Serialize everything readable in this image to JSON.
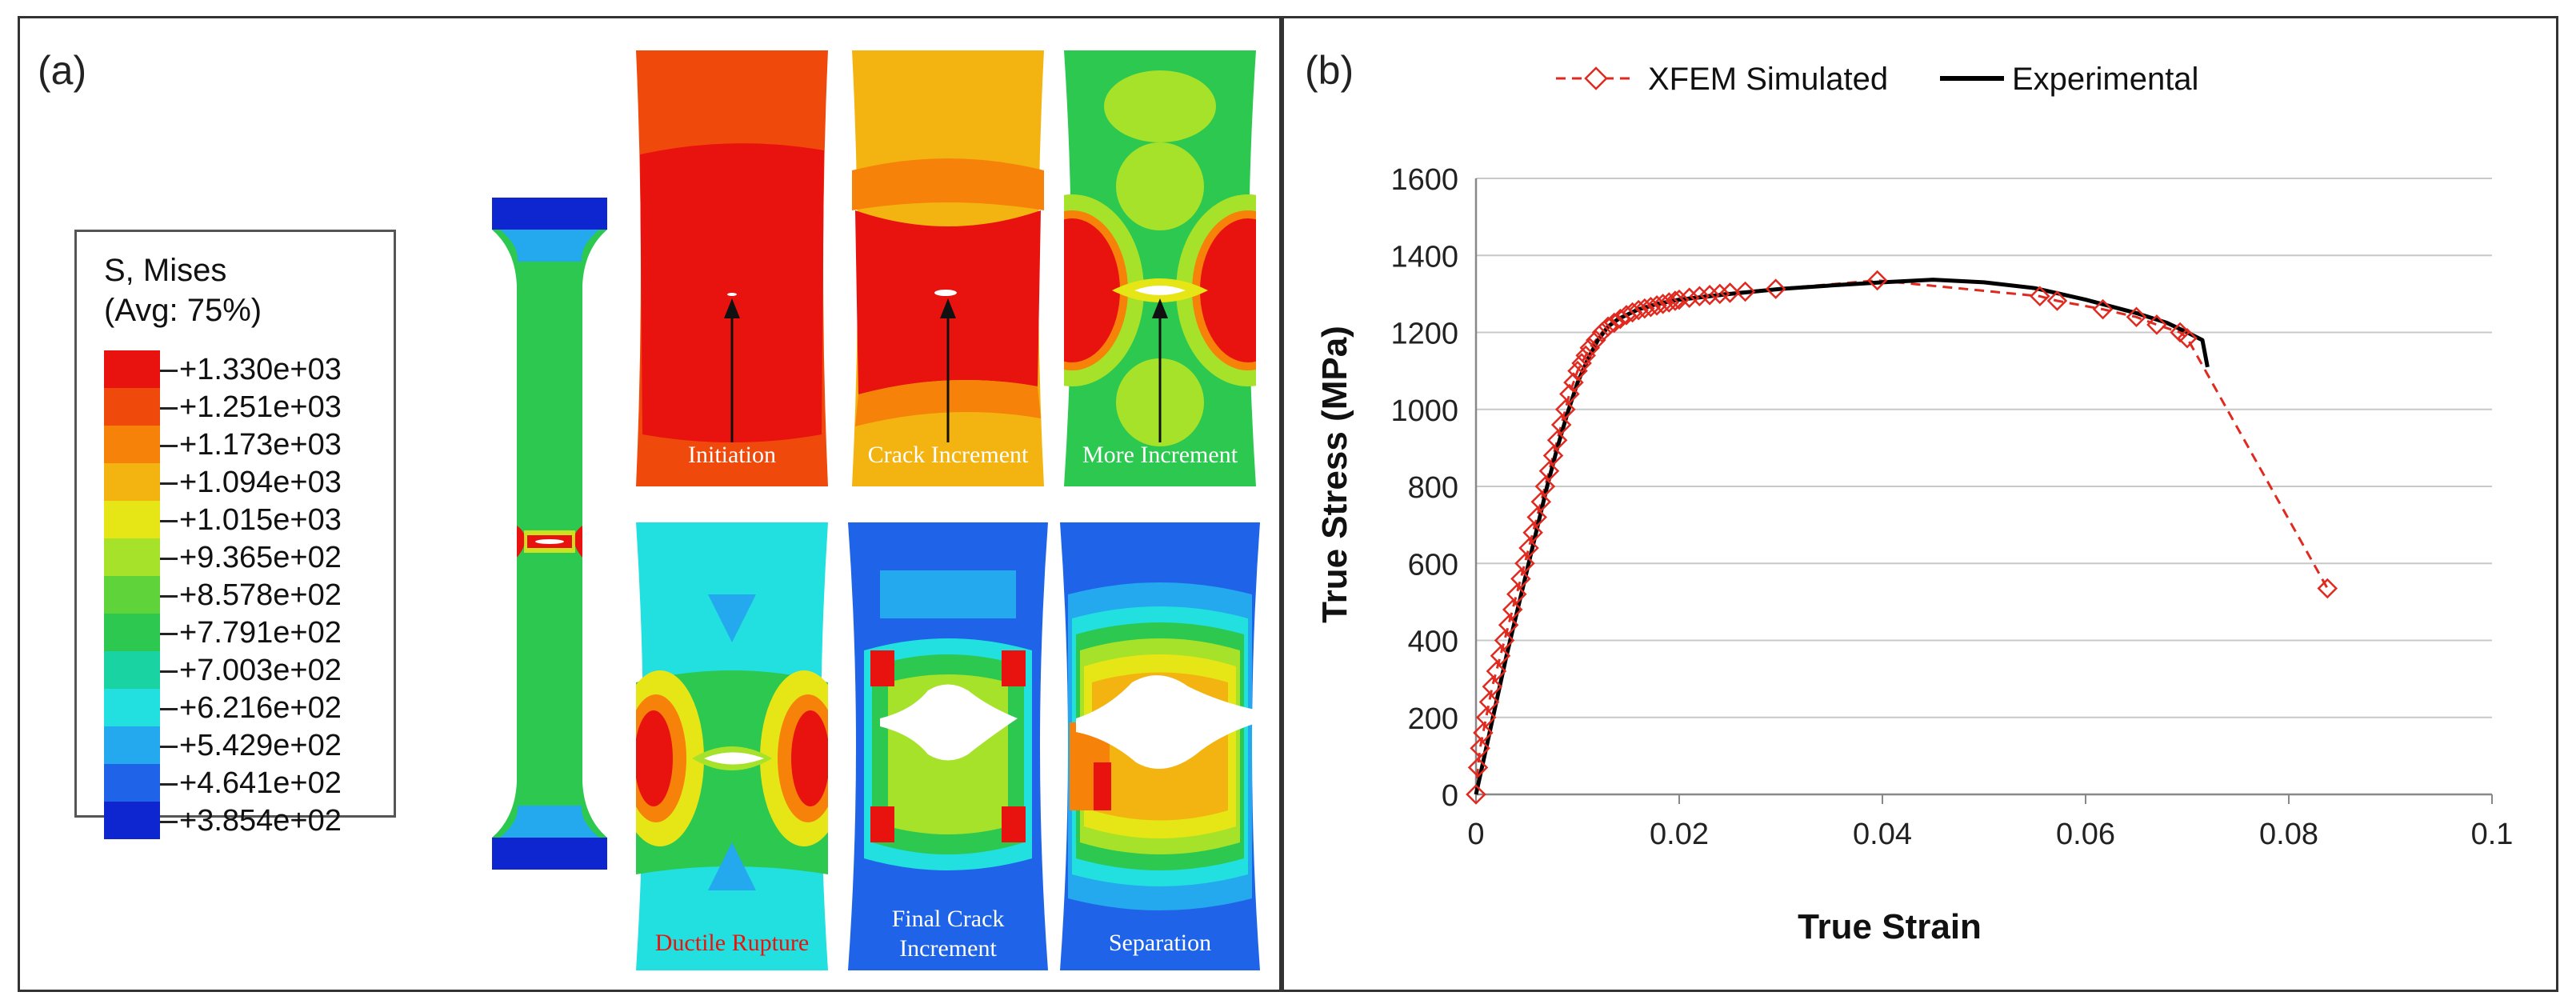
{
  "panel_a": {
    "label": "(a)",
    "legend": {
      "title_line1": "S, Mises",
      "title_line2": "(Avg: 75%)",
      "entries": [
        {
          "label": "+1.330e+03",
          "color": "#e8130e"
        },
        {
          "label": "+1.251e+03",
          "color": "#ef4a0c"
        },
        {
          "label": "+1.173e+03",
          "color": "#f6820a"
        },
        {
          "label": "+1.094e+03",
          "color": "#f3b411"
        },
        {
          "label": "+1.015e+03",
          "color": "#e6e616"
        },
        {
          "label": "+9.365e+02",
          "color": "#a6e22a"
        },
        {
          "label": "+8.578e+02",
          "color": "#5fd43a"
        },
        {
          "label": "+7.791e+02",
          "color": "#2cc850"
        },
        {
          "label": "+7.003e+02",
          "color": "#19d3a2"
        },
        {
          "label": "+6.216e+02",
          "color": "#22e0e0"
        },
        {
          "label": "+5.429e+02",
          "color": "#24a8ee"
        },
        {
          "label": "+4.641e+02",
          "color": "#1f64e8"
        },
        {
          "label": "+3.854e+02",
          "color": "#0d26d0"
        }
      ]
    },
    "stages": [
      {
        "caption": "Initiation",
        "caption_color": "#ffffff"
      },
      {
        "caption": "Crack Increment",
        "caption_color": "#ffffff"
      },
      {
        "caption": "More Increment",
        "caption_color": "#ffffff"
      },
      {
        "caption": "Ductile Rupture",
        "caption_color": "#e8130e"
      },
      {
        "caption": "Final Crack Increment",
        "caption_line1": "Final Crack",
        "caption_line2": "Increment",
        "caption_color": "#ffffff"
      },
      {
        "caption": "Separation",
        "caption_color": "#ffffff"
      }
    ]
  },
  "panel_b": {
    "label": "(b)"
  },
  "chart_data": {
    "type": "line",
    "title": "",
    "xlabel": "True Strain",
    "ylabel": "True Stress (MPa)",
    "xlim": [
      0,
      0.1
    ],
    "ylim": [
      0,
      1600
    ],
    "xticks": [
      0,
      0.02,
      0.04,
      0.06,
      0.08,
      0.1
    ],
    "xtick_labels": [
      "0",
      "0.02",
      "0.04",
      "0.06",
      "0.08",
      "0.1"
    ],
    "yticks": [
      0,
      200,
      400,
      600,
      800,
      1000,
      1200,
      1400,
      1600
    ],
    "ytick_labels": [
      "0",
      "200",
      "400",
      "600",
      "800",
      "1000",
      "1200",
      "1400",
      "1600"
    ],
    "grid": "horizontal",
    "legend_position": "top",
    "series": [
      {
        "name": "XFEM Simulated",
        "color": "#e02a20",
        "style": "dashed",
        "marker": "diamond",
        "x": [
          0.0,
          0.0002,
          0.0004,
          0.0007,
          0.001,
          0.0013,
          0.0016,
          0.002,
          0.0024,
          0.0028,
          0.0032,
          0.0036,
          0.004,
          0.0044,
          0.0048,
          0.0052,
          0.0056,
          0.006,
          0.0064,
          0.0068,
          0.0072,
          0.0076,
          0.008,
          0.0084,
          0.0088,
          0.0092,
          0.0096,
          0.01,
          0.0104,
          0.0108,
          0.0112,
          0.0118,
          0.0124,
          0.013,
          0.0136,
          0.0142,
          0.0148,
          0.0154,
          0.016,
          0.0166,
          0.0172,
          0.0178,
          0.0184,
          0.019,
          0.0196,
          0.02,
          0.021,
          0.022,
          0.023,
          0.024,
          0.025,
          0.0265,
          0.0295,
          0.0395,
          0.0555,
          0.0572,
          0.0617,
          0.065,
          0.067,
          0.0693,
          0.07,
          0.0838
        ],
        "y": [
          0,
          70,
          120,
          160,
          200,
          240,
          280,
          320,
          360,
          400,
          440,
          480,
          520,
          560,
          600,
          640,
          680,
          720,
          760,
          800,
          840,
          880,
          920,
          960,
          1000,
          1040,
          1070,
          1100,
          1120,
          1140,
          1160,
          1180,
          1200,
          1215,
          1225,
          1235,
          1245,
          1252,
          1258,
          1262,
          1266,
          1270,
          1274,
          1278,
          1282,
          1285,
          1290,
          1294,
          1297,
          1300,
          1303,
          1306,
          1313,
          1335,
          1294,
          1282,
          1260,
          1240,
          1220,
          1200,
          1185,
          535
        ]
      },
      {
        "name": "Experimental",
        "color": "#000000",
        "style": "solid",
        "marker": "none",
        "x": [
          0.0,
          0.001,
          0.002,
          0.003,
          0.004,
          0.005,
          0.006,
          0.007,
          0.008,
          0.009,
          0.01,
          0.011,
          0.012,
          0.013,
          0.014,
          0.016,
          0.018,
          0.02,
          0.025,
          0.03,
          0.035,
          0.04,
          0.045,
          0.05,
          0.055,
          0.06,
          0.065,
          0.068,
          0.07,
          0.0715,
          0.072
        ],
        "y": [
          0,
          120,
          240,
          360,
          470,
          580,
          690,
          800,
          900,
          990,
          1070,
          1130,
          1180,
          1215,
          1235,
          1260,
          1275,
          1285,
          1300,
          1313,
          1322,
          1330,
          1337,
          1330,
          1315,
          1285,
          1250,
          1225,
          1200,
          1180,
          1110
        ]
      }
    ]
  }
}
